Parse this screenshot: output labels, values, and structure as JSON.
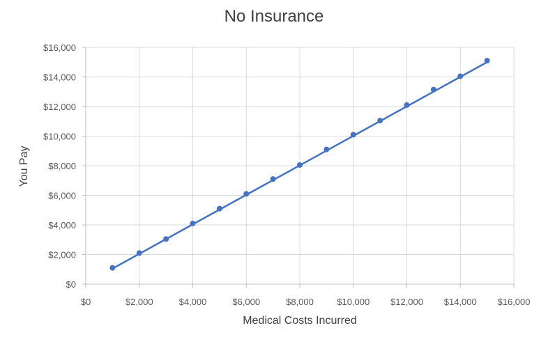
{
  "chart_data": {
    "type": "scatter",
    "title": "No Insurance",
    "xlabel": "Medical Costs Incurred",
    "ylabel": "You Pay",
    "xlim": [
      0,
      16000
    ],
    "ylim": [
      0,
      16000
    ],
    "x_ticks": [
      "$0",
      "$2,000",
      "$4,000",
      "$6,000",
      "$8,000",
      "$10,000",
      "$12,000",
      "$14,000",
      "$16,000"
    ],
    "y_ticks": [
      "$0",
      "$2,000",
      "$4,000",
      "$6,000",
      "$8,000",
      "$10,000",
      "$12,000",
      "$14,000",
      "$16,000"
    ],
    "grid": true,
    "legend": "none",
    "color": "#4472C4",
    "series": [
      {
        "x": [
          1000,
          2000,
          3000,
          4000,
          5000,
          6000,
          7000,
          8000,
          9000,
          10000,
          11000,
          12000,
          13000,
          14000,
          15000
        ],
        "y": [
          1100,
          2100,
          3050,
          4100,
          5100,
          6100,
          7100,
          8050,
          9100,
          10100,
          11050,
          12100,
          13150,
          14050,
          15100
        ]
      }
    ],
    "trendline": {
      "type": "linear",
      "x": [
        1000,
        15000
      ],
      "y": [
        1050,
        15000
      ]
    }
  }
}
